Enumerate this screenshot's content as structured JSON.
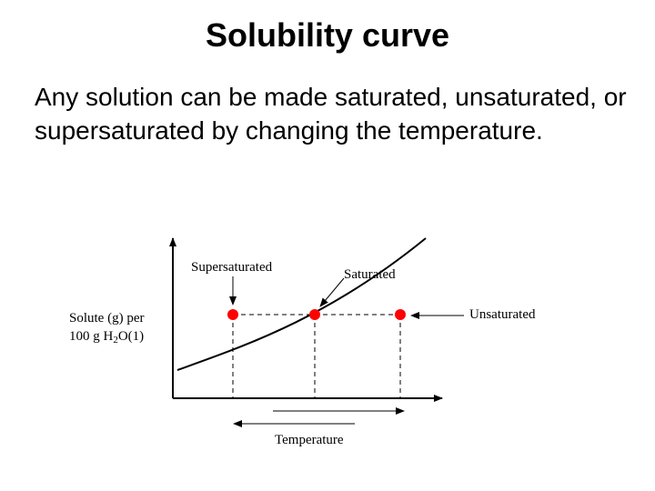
{
  "slide": {
    "title": "Solubility curve",
    "body": "Any solution can be made saturated, unsaturated, or supersaturated by changing the temperature."
  },
  "diagram": {
    "label_supersaturated": "Supersaturated",
    "label_saturated": "Saturated",
    "label_unsaturated": "Unsaturated",
    "ylabel_line1": "Solute (g) per",
    "ylabel_line2_prefix": "100 g H",
    "ylabel_line2_sub": "2",
    "ylabel_line2_suffix": "O(1)",
    "xlabel": "Temperature",
    "point_color": "#ff0000",
    "curve_color": "#000000"
  }
}
